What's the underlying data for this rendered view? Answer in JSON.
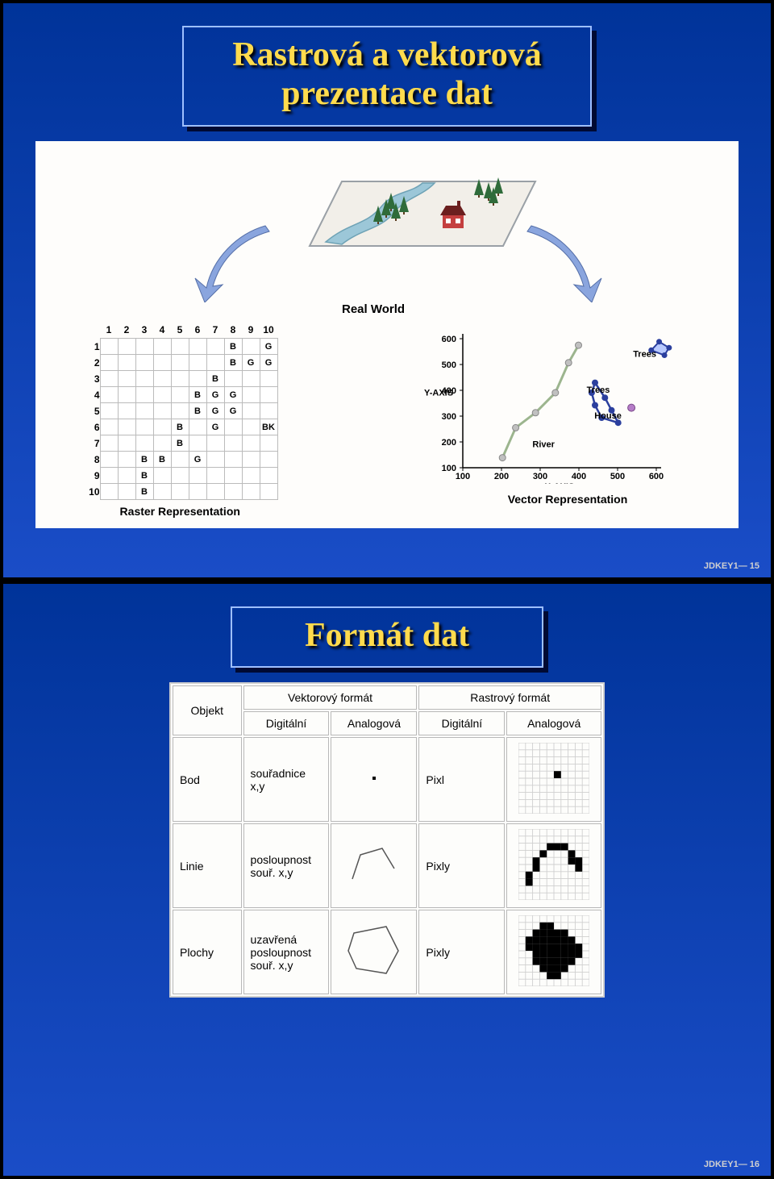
{
  "slide1": {
    "title": "Rastrová a vektorová\nprezentace dat",
    "footer": "JDKEY1— 15",
    "real_world_label": "Real World",
    "raster_caption": "Raster  Representation",
    "vector_caption": "Vector  Representation",
    "raster_grid": {
      "cols": [
        "1",
        "2",
        "3",
        "4",
        "5",
        "6",
        "7",
        "8",
        "9",
        "10"
      ],
      "rows": [
        "1",
        "2",
        "3",
        "4",
        "5",
        "6",
        "7",
        "8",
        "9",
        "10"
      ],
      "cells": {
        "1,8": "B",
        "1,10": "G",
        "2,8": "B",
        "2,9": "G",
        "2,10": "G",
        "3,7": "B",
        "4,6": "B",
        "4,7": "G",
        "4,8": "G",
        "5,6": "B",
        "5,7": "G",
        "5,8": "G",
        "6,5": "B",
        "6,7": "G",
        "6,10": "BK",
        "7,5": "B",
        "8,3": "B",
        "8,4": "B",
        "8,6": "G",
        "9,3": "B",
        "10,3": "B"
      }
    },
    "vector": {
      "x_axis_label": "X-AXIS",
      "y_axis_label": "Y-AXIS",
      "x_ticks": [
        "100",
        "200",
        "300",
        "400",
        "500",
        "600"
      ],
      "y_ticks": [
        "100",
        "200",
        "300",
        "400",
        "500",
        "600"
      ],
      "legend": {
        "trees": "Trees",
        "trees2": "Trees",
        "house": "House",
        "river": "River"
      },
      "colors": {
        "river_line": "#9cb58e",
        "river_node": "#c0c0c0",
        "trees_line": "#2b3f9e",
        "trees_node": "#2b3f9e",
        "trees2_fill": "#b8c9ff",
        "house_node": "#b57cc7",
        "axis": "#000000",
        "grid": "#e6e6e6"
      },
      "river_points": [
        [
          60,
          20
        ],
        [
          80,
          80
        ],
        [
          110,
          110
        ],
        [
          140,
          150
        ],
        [
          160,
          210
        ],
        [
          175,
          245
        ]
      ],
      "trees1_points": [
        [
          200,
          170
        ],
        [
          215,
          140
        ],
        [
          225,
          115
        ],
        [
          235,
          90
        ],
        [
          210,
          100
        ],
        [
          200,
          125
        ],
        [
          195,
          150
        ]
      ],
      "trees2_points": [
        [
          285,
          235
        ],
        [
          305,
          225
        ],
        [
          312,
          240
        ],
        [
          297,
          252
        ]
      ],
      "house_point": [
        255,
        120
      ]
    },
    "scene": {
      "ground_fill": "#f2efe9",
      "ground_stroke": "#9aa0a6",
      "river_fill": "#9cc7d8",
      "river_stroke": "#6ea2b5",
      "tree_fill": "#2f6b3a",
      "tree_trunk": "#5a3c1e",
      "house_body": "#c43f3f",
      "house_roof": "#6b1f1f",
      "house_window": "#ffffff",
      "arrow_fill": "#8aa5de",
      "arrow_stroke": "#556fa8"
    }
  },
  "slide2": {
    "title": "Formát dat",
    "footer": "JDKEY1— 16",
    "table": {
      "header": {
        "objekt": "Objekt",
        "vektor": "Vektorový formát",
        "rastr": "Rastrový formát",
        "digital": "Digitální",
        "analog": "Analogová"
      },
      "rows": [
        {
          "label": "Bod",
          "vd": "souřadnice\nx,y",
          "rd": "Pixl"
        },
        {
          "label": "Linie",
          "vd": "posloupnost\nsouř. x,y",
          "rd": "Pixly"
        },
        {
          "label": "Plochy",
          "vd": "uzavřená\nposloupnost\nsouř. x,y",
          "rd": "Pixly"
        }
      ],
      "grid_stroke": "#cfcfcf",
      "pixel_fill": "#000000",
      "line_stroke": "#555555"
    }
  }
}
